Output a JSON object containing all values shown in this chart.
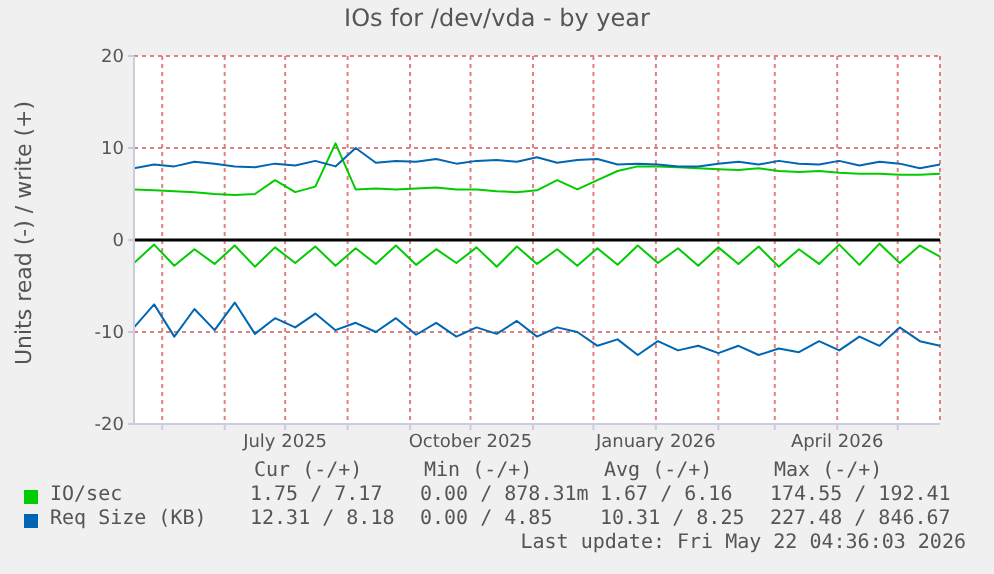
{
  "chart_data": {
    "type": "line",
    "title": "IOs for /dev/vda - by year",
    "ylabel": "Units read (-) / write (+)",
    "x": [
      "2025-04-17",
      "2025-04-27",
      "2025-05-07",
      "2025-05-17",
      "2025-05-27",
      "2025-06-06",
      "2025-06-16",
      "2025-06-26",
      "2025-07-06",
      "2025-07-16",
      "2025-07-26",
      "2025-08-05",
      "2025-08-15",
      "2025-08-25",
      "2025-09-04",
      "2025-09-14",
      "2025-09-24",
      "2025-10-04",
      "2025-10-14",
      "2025-10-24",
      "2025-11-03",
      "2025-11-13",
      "2025-11-23",
      "2025-12-03",
      "2025-12-13",
      "2025-12-23",
      "2026-01-02",
      "2026-01-12",
      "2026-01-22",
      "2026-02-01",
      "2026-02-11",
      "2026-02-21",
      "2026-03-03",
      "2026-03-13",
      "2026-03-23",
      "2026-04-02",
      "2026-04-12",
      "2026-04-22",
      "2026-05-02",
      "2026-05-12",
      "2026-05-22"
    ],
    "series": [
      {
        "name": "IO/sec",
        "color": "#00cc00",
        "values": [
          5.5,
          5.4,
          5.3,
          5.2,
          5.0,
          4.9,
          5.0,
          6.5,
          5.2,
          5.8,
          10.5,
          5.5,
          5.6,
          5.5,
          5.6,
          5.7,
          5.5,
          5.5,
          5.3,
          5.2,
          5.4,
          6.5,
          5.5,
          6.5,
          7.5,
          8.0,
          8.0,
          7.9,
          7.8,
          7.7,
          7.6,
          7.8,
          7.5,
          7.4,
          7.5,
          7.3,
          7.2,
          7.2,
          7.1,
          7.1,
          7.2
        ]
      },
      {
        "color": "#00cc00",
        "values": [
          -2.5,
          -0.5,
          -2.8,
          -1.0,
          -2.6,
          -0.6,
          -2.9,
          -0.8,
          -2.5,
          -0.7,
          -2.8,
          -0.9,
          -2.6,
          -0.6,
          -2.7,
          -1.0,
          -2.5,
          -0.8,
          -2.9,
          -0.7,
          -2.6,
          -1.0,
          -2.8,
          -0.9,
          -2.7,
          -0.6,
          -2.5,
          -0.9,
          -2.8,
          -0.8,
          -2.6,
          -0.7,
          -2.9,
          -1.0,
          -2.6,
          -0.5,
          -2.7,
          -0.4,
          -2.5,
          -0.6,
          -1.8
        ]
      },
      {
        "name": "Req Size (KB)",
        "color": "#0066b3",
        "values": [
          7.8,
          8.2,
          8.0,
          8.5,
          8.3,
          8.0,
          7.9,
          8.3,
          8.1,
          8.6,
          8.0,
          10.0,
          8.4,
          8.6,
          8.5,
          8.8,
          8.3,
          8.6,
          8.7,
          8.5,
          9.0,
          8.4,
          8.7,
          8.8,
          8.2,
          8.3,
          8.2,
          8.0,
          8.0,
          8.3,
          8.5,
          8.2,
          8.6,
          8.3,
          8.2,
          8.6,
          8.1,
          8.5,
          8.3,
          7.8,
          8.2
        ]
      },
      {
        "color": "#0066b3",
        "values": [
          -9.5,
          -7.0,
          -10.5,
          -7.5,
          -9.8,
          -6.8,
          -10.2,
          -8.5,
          -9.5,
          -8.0,
          -9.8,
          -9.0,
          -10.0,
          -8.5,
          -10.3,
          -9.0,
          -10.5,
          -9.5,
          -10.2,
          -8.8,
          -10.5,
          -9.5,
          -10.0,
          -11.5,
          -10.8,
          -12.5,
          -11.0,
          -12.0,
          -11.5,
          -12.3,
          -11.5,
          -12.5,
          -11.8,
          -12.2,
          -11.0,
          -12.0,
          -10.5,
          -11.5,
          -9.5,
          -11.0,
          -11.5
        ]
      }
    ],
    "xlim": [
      "2025-04-17",
      "2026-05-22"
    ],
    "xticks": [
      {
        "value": "2025-05-01",
        "label": null
      },
      {
        "value": "2025-06-01",
        "label": null
      },
      {
        "value": "2025-07-01",
        "label": "July 2025"
      },
      {
        "value": "2025-08-01",
        "label": null
      },
      {
        "value": "2025-09-01",
        "label": null
      },
      {
        "value": "2025-10-01",
        "label": "October 2025"
      },
      {
        "value": "2025-11-01",
        "label": null
      },
      {
        "value": "2025-12-01",
        "label": null
      },
      {
        "value": "2026-01-01",
        "label": "January 2026"
      },
      {
        "value": "2026-02-01",
        "label": null
      },
      {
        "value": "2026-03-01",
        "label": null
      },
      {
        "value": "2026-04-01",
        "label": "April 2026"
      },
      {
        "value": "2026-05-01",
        "label": null
      }
    ],
    "ylim": [
      -20,
      20
    ],
    "yticks": [
      -20,
      -10,
      0,
      10,
      20
    ],
    "ref_lines": [
      {
        "axis": "y",
        "value": 0,
        "color": "#000000"
      }
    ],
    "grid": true,
    "legend": "bottom",
    "line_style": "solid",
    "marker": "none",
    "annotations": [
      "Cur (-/+)",
      "Min (-/+)",
      "Avg (-/+)",
      "Max (-/+)",
      "1.75 / 7.17",
      "0.00 / 878.31m",
      "1.67 / 6.16",
      "174.55 / 192.41",
      "12.31 / 8.18",
      "0.00 / 4.85",
      "10.31 / 8.25",
      "227.48 / 846.67",
      "Last update: Fri May 22 04:36:03 2026"
    ]
  }
}
